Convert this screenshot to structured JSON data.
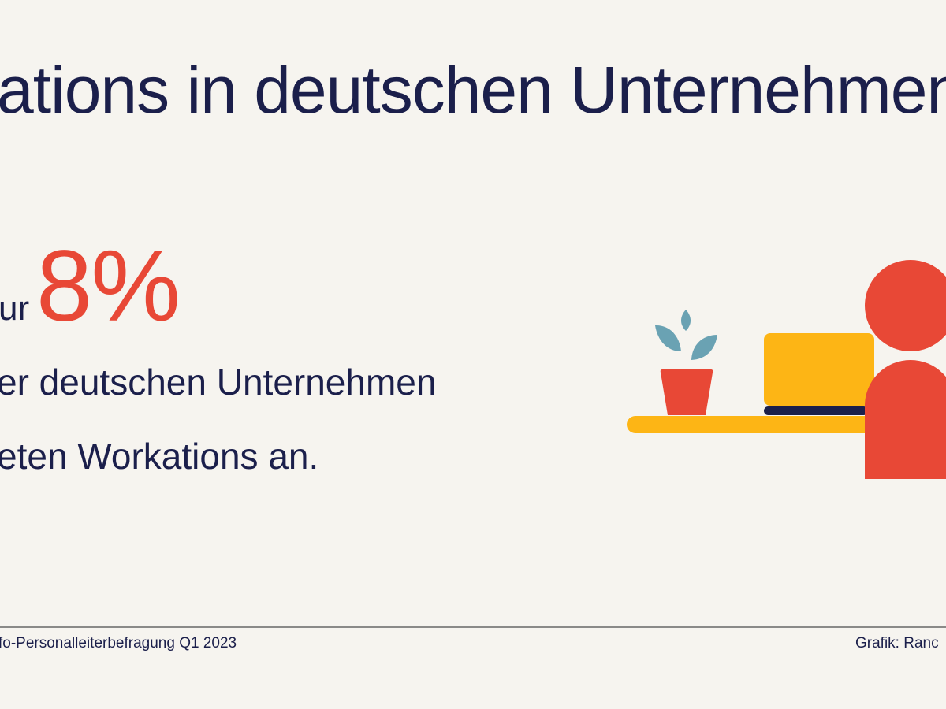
{
  "title": "ations in deutschen Unternehmen",
  "statement": {
    "lead": "ur",
    "percent": "8%",
    "line1": "er deutschen Unternehmen",
    "line2": "eten Workations an."
  },
  "footer": {
    "source": "fo-Personalleiterbefragung Q1 2023",
    "credit": "Grafik: Ranc"
  },
  "colors": {
    "accent": "#e84836",
    "navy": "#1b1f4b",
    "yellow": "#fdb515",
    "teal": "#6aa2b3",
    "background": "#f6f4ef"
  }
}
